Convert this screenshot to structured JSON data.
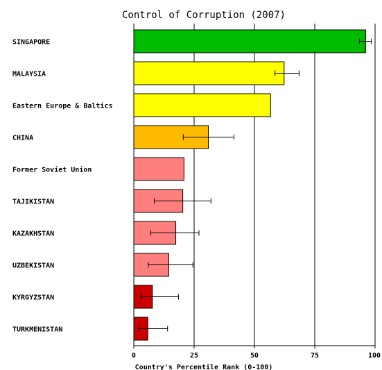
{
  "chart_data": {
    "type": "bar",
    "orientation": "horizontal",
    "title": "Control of Corruption (2007)",
    "xlabel": "Country's Percentile Rank (0-100)",
    "xlim": [
      0,
      100
    ],
    "xticks": [
      "0",
      "25",
      "50",
      "75",
      "100"
    ],
    "grid": true,
    "categories": [
      "SINGAPORE",
      "MALAYSIA",
      "Eastern Europe & Baltics",
      "CHINA",
      "Former Soviet Union",
      "TAJIKISTAN",
      "KAZAKHSTAN",
      "UZBEKISTAN",
      "KYRGYZSTAN",
      "TURKMENISTAN"
    ],
    "values": [
      96.1,
      62.3,
      56.7,
      30.9,
      20.8,
      20.3,
      17.4,
      14.5,
      7.7,
      5.8
    ],
    "error_low": [
      93.5,
      58.5,
      null,
      20.5,
      null,
      8.5,
      7.0,
      6.0,
      3.0,
      2.0
    ],
    "error_high": [
      98.5,
      68.5,
      null,
      41.5,
      null,
      32.0,
      27.0,
      24.5,
      18.5,
      14.0
    ],
    "colors": [
      "#00bb00",
      "#ffff00",
      "#ffff00",
      "#ffbb00",
      "#ff7f7f",
      "#ff7f7f",
      "#ff7f7f",
      "#ff7f7f",
      "#cc0000",
      "#cc0000"
    ]
  }
}
